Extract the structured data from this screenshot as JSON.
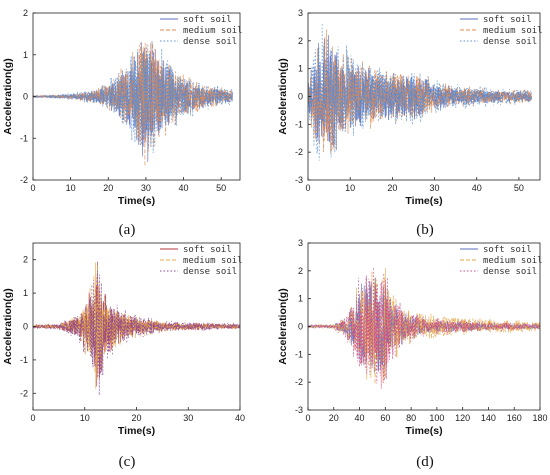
{
  "chart_data": [
    {
      "panel": "(a)",
      "type": "line",
      "xlabel": "Time(s)",
      "ylabel": "Acceleration(g)",
      "xlim": [
        0,
        55
      ],
      "ylim": [
        -2,
        2
      ],
      "xticks": [
        0,
        10,
        20,
        30,
        40,
        50
      ],
      "yticks": [
        -2,
        -1,
        0,
        1,
        2
      ],
      "legend": "top-right",
      "series": [
        {
          "name": "soft soil",
          "color": "#5e6fc0",
          "dash": "",
          "amplitude_envelope_t": [
            0,
            8,
            15,
            20,
            25,
            28,
            30,
            33,
            38,
            45,
            53
          ],
          "amplitude_envelope_g": [
            0.02,
            0.05,
            0.12,
            0.3,
            0.8,
            1.2,
            1.9,
            1.2,
            0.6,
            0.3,
            0.15
          ]
        },
        {
          "name": "medium soil",
          "color": "#e58a4a",
          "dash": "4,2",
          "amplitude_envelope_t": [
            0,
            8,
            15,
            20,
            25,
            28,
            30,
            33,
            38,
            45,
            53
          ],
          "amplitude_envelope_g": [
            0.02,
            0.05,
            0.15,
            0.35,
            0.9,
            1.4,
            2.0,
            1.3,
            0.7,
            0.35,
            0.18
          ]
        },
        {
          "name": "dense soil",
          "color": "#5a8fd1",
          "dash": "1.5,2",
          "amplitude_envelope_t": [
            0,
            8,
            15,
            20,
            25,
            28,
            30,
            33,
            38,
            45,
            53
          ],
          "amplitude_envelope_g": [
            0.02,
            0.06,
            0.18,
            0.4,
            1.0,
            1.6,
            2.0,
            1.4,
            0.8,
            0.4,
            0.2
          ]
        }
      ]
    },
    {
      "panel": "(b)",
      "type": "line",
      "xlabel": "Time(s)",
      "ylabel": "Acceleration(g)",
      "xlim": [
        0,
        55
      ],
      "ylim": [
        -3,
        3
      ],
      "xticks": [
        0,
        10,
        20,
        30,
        40,
        50
      ],
      "yticks": [
        -3,
        -2,
        -1,
        0,
        1,
        2,
        3
      ],
      "legend": "top-right",
      "series": [
        {
          "name": "soft soil",
          "color": "#5e6fc0",
          "dash": "",
          "amplitude_envelope_t": [
            0,
            2,
            4,
            8,
            12,
            20,
            26,
            30,
            40,
            53
          ],
          "amplitude_envelope_g": [
            0.5,
            2.0,
            2.6,
            1.6,
            1.2,
            0.9,
            0.9,
            0.5,
            0.3,
            0.2
          ]
        },
        {
          "name": "medium soil",
          "color": "#e58a4a",
          "dash": "4,2",
          "amplitude_envelope_t": [
            0,
            2,
            4,
            8,
            12,
            20,
            26,
            30,
            40,
            53
          ],
          "amplitude_envelope_g": [
            0.6,
            2.3,
            2.8,
            1.8,
            1.4,
            1.0,
            1.0,
            0.6,
            0.35,
            0.25
          ]
        },
        {
          "name": "dense soil",
          "color": "#5a8fd1",
          "dash": "1.5,2",
          "amplitude_envelope_t": [
            0,
            2,
            4,
            8,
            12,
            20,
            26,
            30,
            40,
            53
          ],
          "amplitude_envelope_g": [
            0.7,
            2.8,
            2.9,
            2.0,
            1.5,
            1.1,
            1.1,
            0.7,
            0.4,
            0.3
          ]
        }
      ]
    },
    {
      "panel": "(c)",
      "type": "line",
      "xlabel": "Time(s)",
      "ylabel": "Acceleration(g)",
      "xlim": [
        0,
        40
      ],
      "ylim": [
        -2.5,
        2.5
      ],
      "xticks": [
        0,
        10,
        20,
        30,
        40
      ],
      "yticks": [
        -2,
        -1,
        0,
        1,
        2
      ],
      "legend": "top-right",
      "series": [
        {
          "name": "soft soil",
          "color": "#b5373c",
          "dash": "",
          "amplitude_envelope_t": [
            0,
            5,
            9,
            11,
            12.5,
            14,
            16,
            20,
            25,
            30,
            40
          ],
          "amplitude_envelope_g": [
            0.05,
            0.08,
            0.4,
            1.2,
            2.3,
            1.0,
            0.6,
            0.3,
            0.15,
            0.12,
            0.08
          ]
        },
        {
          "name": "medium soil",
          "color": "#e5a84a",
          "dash": "4,2",
          "amplitude_envelope_t": [
            0,
            5,
            9,
            11,
            12.5,
            14,
            16,
            20,
            25,
            30,
            40
          ],
          "amplitude_envelope_g": [
            0.05,
            0.08,
            0.45,
            1.3,
            2.4,
            1.1,
            0.7,
            0.35,
            0.18,
            0.12,
            0.08
          ]
        },
        {
          "name": "dense soil",
          "color": "#8a4a9a",
          "dash": "1.5,2",
          "amplitude_envelope_t": [
            0,
            5,
            9,
            11,
            12.5,
            14,
            16,
            20,
            25,
            30,
            40
          ],
          "amplitude_envelope_g": [
            0.06,
            0.1,
            0.5,
            1.4,
            2.4,
            1.2,
            0.8,
            0.4,
            0.2,
            0.15,
            0.1
          ]
        }
      ]
    },
    {
      "panel": "(d)",
      "type": "line",
      "xlabel": "Time(s)",
      "ylabel": "Acceleration(g)",
      "xlim": [
        0,
        180
      ],
      "ylim": [
        -3,
        3
      ],
      "xticks": [
        0,
        20,
        40,
        60,
        80,
        100,
        120,
        140,
        160,
        180
      ],
      "yticks": [
        -3,
        -2,
        -1,
        0,
        1,
        2,
        3
      ],
      "legend": "top-right",
      "series": [
        {
          "name": "soft soil",
          "color": "#5e6fc0",
          "dash": "",
          "amplitude_envelope_t": [
            0,
            20,
            30,
            40,
            50,
            58,
            65,
            75,
            90,
            120,
            160,
            180
          ],
          "amplitude_envelope_g": [
            0.05,
            0.08,
            0.4,
            1.6,
            2.0,
            2.4,
            1.2,
            0.6,
            0.3,
            0.2,
            0.12,
            0.1
          ]
        },
        {
          "name": "medium soil",
          "color": "#e5a84a",
          "dash": "4,2",
          "amplitude_envelope_t": [
            0,
            20,
            30,
            40,
            50,
            58,
            65,
            75,
            90,
            120,
            160,
            180
          ],
          "amplitude_envelope_g": [
            0.05,
            0.1,
            0.5,
            1.8,
            2.2,
            2.6,
            1.4,
            0.8,
            0.5,
            0.35,
            0.25,
            0.2
          ]
        },
        {
          "name": "dense soil",
          "color": "#d04a8a",
          "dash": "1.5,2",
          "amplitude_envelope_t": [
            0,
            20,
            30,
            40,
            50,
            58,
            65,
            75,
            90,
            120,
            160,
            180
          ],
          "amplitude_envelope_g": [
            0.06,
            0.1,
            0.6,
            2.0,
            2.4,
            2.8,
            1.5,
            0.7,
            0.4,
            0.25,
            0.15,
            0.12
          ]
        }
      ]
    }
  ]
}
